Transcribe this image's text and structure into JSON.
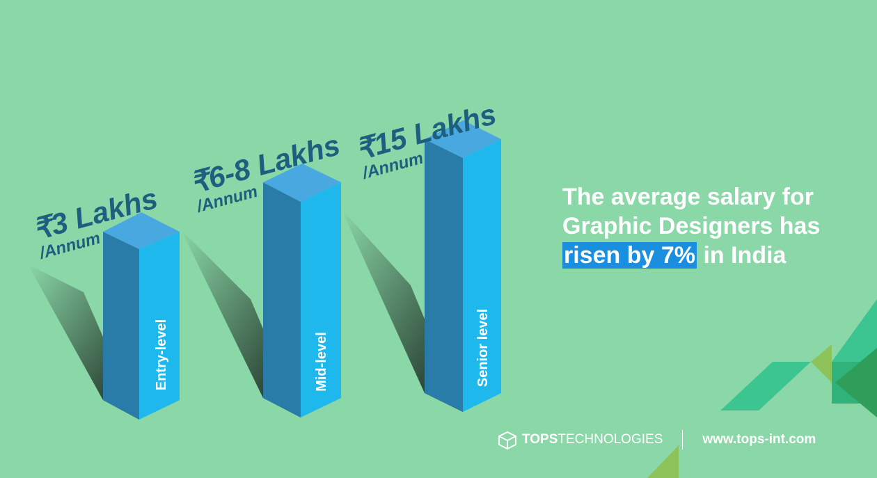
{
  "bars": [
    {
      "amount": "₹3 Lakhs",
      "period": "/Annum",
      "level": "Entry-level"
    },
    {
      "amount": "₹6-8 Lakhs",
      "period": "/Annum",
      "level": "Mid-level"
    },
    {
      "amount": "₹15 Lakhs",
      "period": "/Annum",
      "level": "Senior level"
    }
  ],
  "headline": {
    "before": "The average salary for Graphic Designers has",
    "highlight": "risen by 7%",
    "after": "in India"
  },
  "footer": {
    "brand_bold": "TOPS",
    "brand_rest": "TECHNOLOGIES",
    "url": "www.tops-int.com"
  }
}
